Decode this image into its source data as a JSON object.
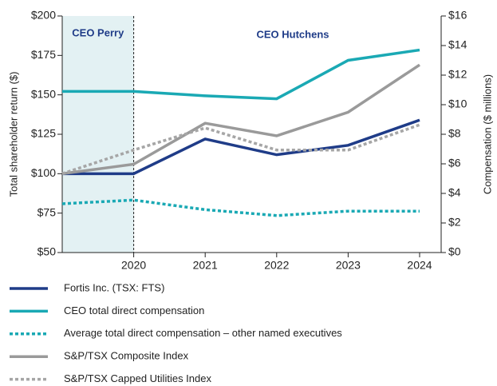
{
  "chart_data": {
    "type": "line",
    "categories": [
      null,
      "2020",
      "2021",
      "2022",
      "2023",
      "2024"
    ],
    "y_label": "Total shareholder return ($)",
    "y2_label": "Compensation ($ millions)",
    "annotations": [
      "CEO Perry",
      "CEO Hutchens"
    ],
    "ylim": [
      50,
      200
    ],
    "yticks": [
      {
        "value": 50,
        "label": "$50"
      },
      {
        "value": 75,
        "label": "$75"
      },
      {
        "value": 100,
        "label": "$100"
      },
      {
        "value": 125,
        "label": "$125"
      },
      {
        "value": 150,
        "label": "$150"
      },
      {
        "value": 175,
        "label": "$175"
      },
      {
        "value": 200,
        "label": "$200"
      }
    ],
    "y2lim": [
      0,
      16
    ],
    "y2ticks": [
      {
        "value": 0,
        "label": "$0"
      },
      {
        "value": 2,
        "label": "$2"
      },
      {
        "value": 4,
        "label": "$4"
      },
      {
        "value": 6,
        "label": "$6"
      },
      {
        "value": 8,
        "label": "$8"
      },
      {
        "value": 10,
        "label": "$10"
      },
      {
        "value": 12,
        "label": "$12"
      },
      {
        "value": 14,
        "label": "$14"
      },
      {
        "value": 16,
        "label": "$16"
      }
    ],
    "series": [
      {
        "name": "Fortis Inc. (TSX: FTS)",
        "color": "#1f3c88",
        "style": "solid",
        "values": [
          100,
          100,
          122,
          112,
          118,
          134
        ]
      },
      {
        "name": "CEO total direct compensation",
        "color": "#1aa9b4",
        "style": "solid",
        "axis": "y2",
        "values": [
          10.9,
          10.9,
          10.6,
          10.4,
          13.0,
          13.7
        ]
      },
      {
        "name": "Average total direct compensation – other named executives",
        "color": "#1aa9b4",
        "style": "dotted",
        "axis": "y2",
        "values": [
          3.3,
          3.55,
          2.9,
          2.5,
          2.8,
          2.8
        ]
      },
      {
        "name": "S&P/TSX Composite Index",
        "color": "#9a9a9a",
        "style": "solid",
        "values": [
          100,
          106,
          132,
          124,
          139,
          169
        ]
      },
      {
        "name": "S&P/TSX Capped Utilities Index",
        "color": "#a6a6a6",
        "style": "dotted",
        "values": [
          100,
          115,
          129,
          115,
          115,
          131
        ]
      }
    ]
  }
}
